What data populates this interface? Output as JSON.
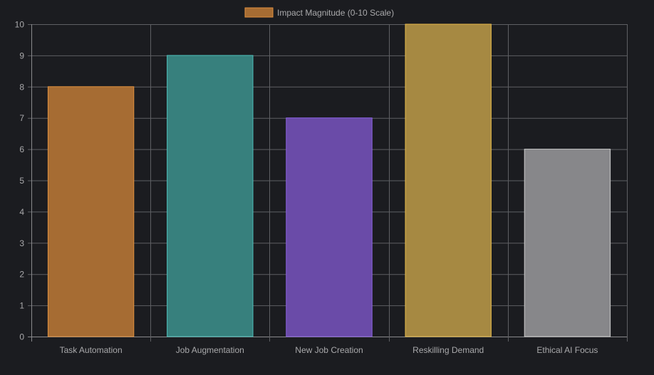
{
  "chart_data": {
    "type": "bar",
    "title": "",
    "xlabel": "",
    "ylabel": "",
    "legend": {
      "label": "Impact Magnitude (0-10 Scale)",
      "position": "top-center",
      "color": "#a66c33",
      "border": "#e0913f"
    },
    "categories": [
      "Task Automation",
      "Job Augmentation",
      "New Job Creation",
      "Reskilling Demand",
      "Ethical AI Focus"
    ],
    "series": [
      {
        "name": "Impact Magnitude (0-10 Scale)",
        "values": [
          8,
          9,
          7,
          10,
          6
        ]
      }
    ],
    "colors": [
      "#a66c33",
      "#37807d",
      "#6a4ba8",
      "#a68942",
      "#87878a"
    ],
    "borders": [
      "#e0913f",
      "#4fc0bb",
      "#8b63e0",
      "#e5b94a",
      "#c8c8c8"
    ],
    "ylim": [
      0,
      10
    ],
    "yticks": [
      0,
      1,
      2,
      3,
      4,
      5,
      6,
      7,
      8,
      9,
      10
    ],
    "grid": true,
    "background": "#1b1c20"
  }
}
